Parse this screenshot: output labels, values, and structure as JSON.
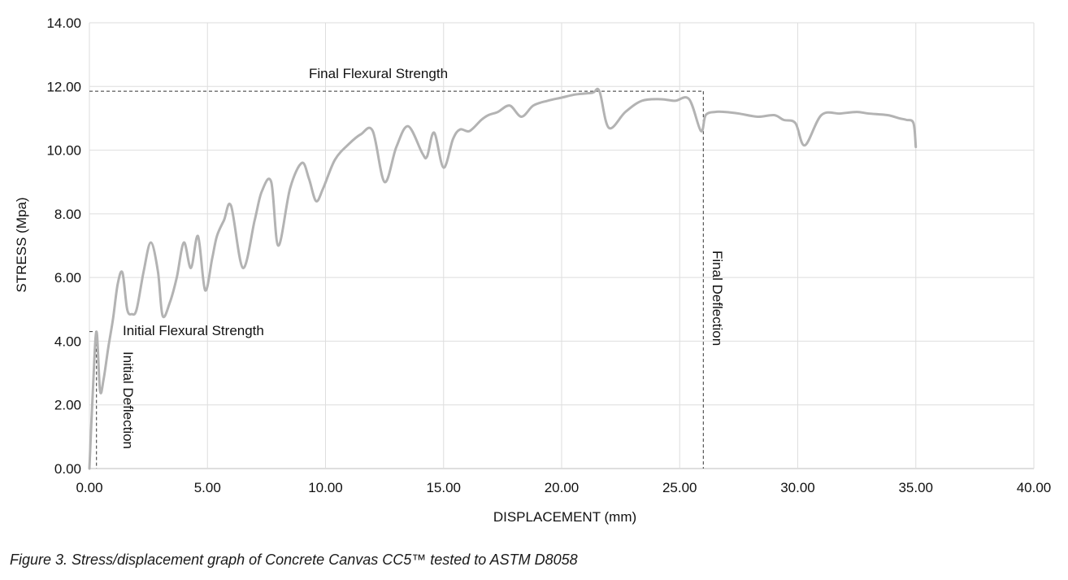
{
  "chart_data": {
    "type": "line",
    "title": "",
    "xlabel": "DISPLACEMENT (mm)",
    "ylabel": "STRESS (Mpa)",
    "xlim": [
      0,
      40
    ],
    "ylim": [
      0,
      14
    ],
    "x_ticks": [
      "0.00",
      "5.00",
      "10.00",
      "15.00",
      "20.00",
      "25.00",
      "30.00",
      "35.00",
      "40.00"
    ],
    "y_ticks": [
      "0.00",
      "2.00",
      "4.00",
      "6.00",
      "8.00",
      "10.00",
      "12.00",
      "14.00"
    ],
    "grid": true,
    "series": [
      {
        "name": "Concrete Canvas CC5",
        "color": "#b3b3b3",
        "x": [
          0,
          0.15,
          0.3,
          0.45,
          0.6,
          0.8,
          1.0,
          1.2,
          1.4,
          1.6,
          1.8,
          2.0,
          2.3,
          2.6,
          2.9,
          3.1,
          3.4,
          3.7,
          4.0,
          4.3,
          4.6,
          4.9,
          5.2,
          5.4,
          5.7,
          6.0,
          6.5,
          7.0,
          7.3,
          7.7,
          8.0,
          8.5,
          9.0,
          9.3,
          9.6,
          9.9,
          10.4,
          11.0,
          11.5,
          12.0,
          12.5,
          13.0,
          13.5,
          14.1,
          14.3,
          14.6,
          15.0,
          15.4,
          15.7,
          16.1,
          16.6,
          16.9,
          17.3,
          17.8,
          18.3,
          18.8,
          19.4,
          20.0,
          20.6,
          21.3,
          21.6,
          22.0,
          22.7,
          23.4,
          24.2,
          24.8,
          25.4,
          25.9,
          26.1,
          26.5,
          26.9,
          27.5,
          28.3,
          29.0,
          29.4,
          29.9,
          30.3,
          31.0,
          31.8,
          32.5,
          33.0,
          33.8,
          34.3,
          34.6,
          34.9,
          35.0
        ],
        "y": [
          0.0,
          2.5,
          4.3,
          2.45,
          2.8,
          3.8,
          4.7,
          5.8,
          6.15,
          5.0,
          4.85,
          5.0,
          6.2,
          7.1,
          6.2,
          4.8,
          5.2,
          6.0,
          7.1,
          6.3,
          7.3,
          5.6,
          6.6,
          7.3,
          7.8,
          8.25,
          6.3,
          7.8,
          8.7,
          9.0,
          7.0,
          8.8,
          9.6,
          9.1,
          8.4,
          8.8,
          9.7,
          10.2,
          10.5,
          10.6,
          9.0,
          10.1,
          10.75,
          9.9,
          9.8,
          10.55,
          9.45,
          10.35,
          10.65,
          10.6,
          10.95,
          11.1,
          11.2,
          11.4,
          11.05,
          11.4,
          11.55,
          11.65,
          11.75,
          11.8,
          11.85,
          10.7,
          11.2,
          11.55,
          11.6,
          11.55,
          11.6,
          10.6,
          11.1,
          11.2,
          11.2,
          11.15,
          11.05,
          11.1,
          10.95,
          10.85,
          10.15,
          11.1,
          11.15,
          11.2,
          11.15,
          11.1,
          11.0,
          10.95,
          10.85,
          10.1
        ]
      }
    ],
    "reference_lines": [
      {
        "label": "Initial Flexural Strength",
        "orientation": "horizontal",
        "y": 4.3,
        "x_end": 0.3
      },
      {
        "label": "Initial Deflection",
        "orientation": "vertical",
        "x": 0.3,
        "y_end": 4.3
      },
      {
        "label": "Final Flexural Strength",
        "orientation": "horizontal",
        "y": 11.85,
        "x_end": 26.0
      },
      {
        "label": "Final Deflection",
        "orientation": "vertical",
        "x": 26.0,
        "y_end": 11.85
      }
    ]
  },
  "caption": "Figure 3. Stress/displacement graph of Concrete Canvas CC5™ tested to ASTM D8058"
}
